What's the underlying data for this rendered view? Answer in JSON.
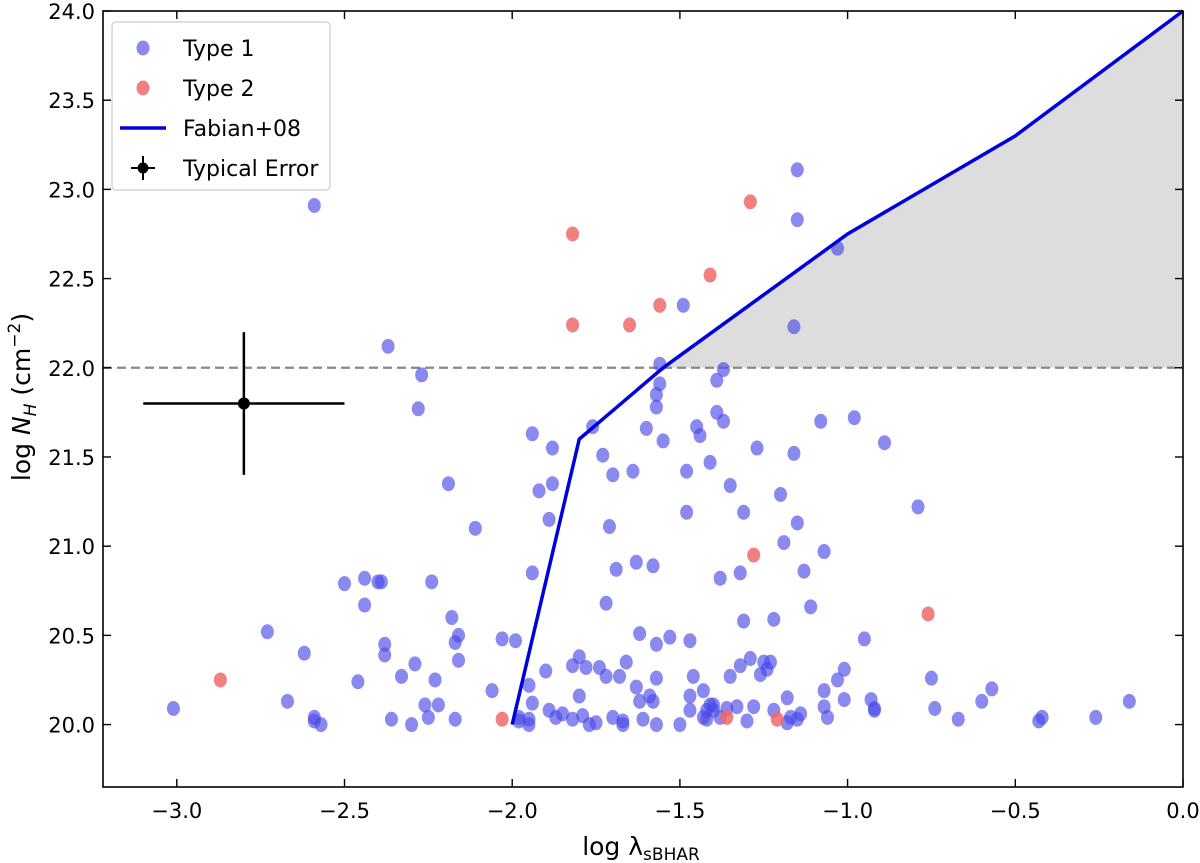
{
  "chart_data": {
    "type": "scatter",
    "xlabel": "log λsBHAR",
    "ylabel": "log NH (cm−2)",
    "xlim": [
      -3.22,
      0.0
    ],
    "ylim": [
      19.65,
      24.0
    ],
    "xticks": [
      "−3.0",
      "−2.5",
      "−2.0",
      "−1.5",
      "−1.0",
      "−0.5",
      "0.0"
    ],
    "xtick_values": [
      -3.0,
      -2.5,
      -2.0,
      -1.5,
      -1.0,
      -0.5,
      0.0
    ],
    "yticks": [
      "20.0",
      "20.5",
      "21.0",
      "21.5",
      "22.0",
      "22.5",
      "23.0",
      "23.5",
      "24.0"
    ],
    "ytick_values": [
      20.0,
      20.5,
      21.0,
      21.5,
      22.0,
      22.5,
      23.0,
      23.5,
      24.0
    ],
    "colors": {
      "type1": "#4a4ae8",
      "type2": "#f06a6a",
      "fabian_line": "#0000dd",
      "shade": "#dddddd",
      "hline": "#888888",
      "error": "#000000"
    },
    "legend": {
      "position": "top-left",
      "entries": [
        "Type 1",
        "Type 2",
        "Fabian+08",
        "Typical Error"
      ]
    },
    "hline": 22.0,
    "typical_error": {
      "x": -2.8,
      "y": 21.8,
      "xerr": 0.3,
      "yerr": 0.4
    },
    "fabian08": {
      "x": [
        -2.0,
        -1.8,
        -1.55,
        -1.0,
        -0.5,
        0.0
      ],
      "y": [
        20.0,
        21.6,
        22.0,
        22.75,
        23.3,
        24.0
      ]
    },
    "series": [
      {
        "name": "Type 1",
        "points": [
          [
            -3.01,
            20.09
          ],
          [
            -2.73,
            20.52
          ],
          [
            -2.67,
            20.13
          ],
          [
            -2.62,
            20.4
          ],
          [
            -2.59,
            20.04
          ],
          [
            -2.59,
            20.02
          ],
          [
            -2.57,
            20.0
          ],
          [
            -2.59,
            22.91
          ],
          [
            -2.5,
            20.79
          ],
          [
            -2.46,
            20.24
          ],
          [
            -2.44,
            20.82
          ],
          [
            -2.44,
            20.67
          ],
          [
            -2.4,
            20.8
          ],
          [
            -2.39,
            20.8
          ],
          [
            -2.38,
            20.45
          ],
          [
            -2.38,
            20.39
          ],
          [
            -2.36,
            20.03
          ],
          [
            -2.37,
            22.12
          ],
          [
            -2.33,
            20.27
          ],
          [
            -2.3,
            20.0
          ],
          [
            -2.29,
            20.34
          ],
          [
            -2.28,
            21.77
          ],
          [
            -2.27,
            21.96
          ],
          [
            -2.26,
            20.11
          ],
          [
            -2.25,
            20.04
          ],
          [
            -2.24,
            20.8
          ],
          [
            -2.23,
            20.25
          ],
          [
            -2.22,
            20.11
          ],
          [
            -2.19,
            21.35
          ],
          [
            -2.18,
            20.6
          ],
          [
            -2.17,
            20.46
          ],
          [
            -2.17,
            20.03
          ],
          [
            -2.16,
            20.36
          ],
          [
            -2.16,
            20.5
          ],
          [
            -2.11,
            21.1
          ],
          [
            -2.06,
            20.19
          ],
          [
            -2.03,
            20.48
          ],
          [
            -1.99,
            20.47
          ],
          [
            -1.98,
            20.04
          ],
          [
            -1.98,
            20.02
          ],
          [
            -1.95,
            20.22
          ],
          [
            -1.95,
            20.03
          ],
          [
            -1.95,
            20.0
          ],
          [
            -1.94,
            20.85
          ],
          [
            -1.94,
            21.63
          ],
          [
            -1.94,
            20.12
          ],
          [
            -1.92,
            21.31
          ],
          [
            -1.9,
            20.3
          ],
          [
            -1.89,
            21.15
          ],
          [
            -1.89,
            20.08
          ],
          [
            -1.88,
            21.35
          ],
          [
            -1.88,
            21.55
          ],
          [
            -1.87,
            20.04
          ],
          [
            -1.85,
            20.06
          ],
          [
            -1.82,
            20.03
          ],
          [
            -1.82,
            20.33
          ],
          [
            -1.8,
            20.38
          ],
          [
            -1.8,
            20.16
          ],
          [
            -1.79,
            20.05
          ],
          [
            -1.78,
            20.32
          ],
          [
            -1.77,
            20.0
          ],
          [
            -1.76,
            21.67
          ],
          [
            -1.75,
            20.01
          ],
          [
            -1.74,
            20.32
          ],
          [
            -1.73,
            21.51
          ],
          [
            -1.72,
            20.27
          ],
          [
            -1.72,
            20.68
          ],
          [
            -1.71,
            21.11
          ],
          [
            -1.7,
            20.04
          ],
          [
            -1.7,
            21.4
          ],
          [
            -1.69,
            20.87
          ],
          [
            -1.68,
            20.27
          ],
          [
            -1.67,
            20.0
          ],
          [
            -1.67,
            20.02
          ],
          [
            -1.66,
            20.35
          ],
          [
            -1.64,
            21.42
          ],
          [
            -1.63,
            20.91
          ],
          [
            -1.63,
            20.21
          ],
          [
            -1.62,
            20.51
          ],
          [
            -1.62,
            20.13
          ],
          [
            -1.61,
            20.03
          ],
          [
            -1.6,
            21.66
          ],
          [
            -1.59,
            20.16
          ],
          [
            -1.58,
            20.13
          ],
          [
            -1.57,
            20.0
          ],
          [
            -1.57,
            21.78
          ],
          [
            -1.57,
            21.85
          ],
          [
            -1.56,
            21.91
          ],
          [
            -1.56,
            22.02
          ],
          [
            -1.55,
            21.59
          ],
          [
            -1.57,
            20.45
          ],
          [
            -1.58,
            20.89
          ],
          [
            -1.57,
            20.26
          ],
          [
            -1.53,
            20.49
          ],
          [
            -1.5,
            20.0
          ],
          [
            -1.49,
            22.35
          ],
          [
            -1.48,
            21.42
          ],
          [
            -1.48,
            21.19
          ],
          [
            -1.47,
            20.47
          ],
          [
            -1.47,
            20.08
          ],
          [
            -1.47,
            20.16
          ],
          [
            -1.46,
            20.27
          ],
          [
            -1.45,
            21.67
          ],
          [
            -1.44,
            21.62
          ],
          [
            -1.43,
            20.04
          ],
          [
            -1.43,
            20.19
          ],
          [
            -1.42,
            20.03
          ],
          [
            -1.42,
            20.08
          ],
          [
            -1.41,
            21.47
          ],
          [
            -1.41,
            20.11
          ],
          [
            -1.4,
            20.11
          ],
          [
            -1.4,
            20.08
          ],
          [
            -1.39,
            21.75
          ],
          [
            -1.39,
            21.93
          ],
          [
            -1.38,
            20.82
          ],
          [
            -1.37,
            21.7
          ],
          [
            -1.37,
            21.99
          ],
          [
            -1.38,
            20.04
          ],
          [
            -1.36,
            20.09
          ],
          [
            -1.35,
            20.27
          ],
          [
            -1.35,
            21.34
          ],
          [
            -1.33,
            20.1
          ],
          [
            -1.32,
            20.33
          ],
          [
            -1.32,
            20.85
          ],
          [
            -1.31,
            21.19
          ],
          [
            -1.31,
            20.58
          ],
          [
            -1.3,
            20.02
          ],
          [
            -1.29,
            20.37
          ],
          [
            -1.28,
            20.1
          ],
          [
            -1.27,
            21.55
          ],
          [
            -1.26,
            20.28
          ],
          [
            -1.25,
            20.35
          ],
          [
            -1.24,
            20.31
          ],
          [
            -1.23,
            20.35
          ],
          [
            -1.22,
            20.59
          ],
          [
            -1.22,
            20.08
          ],
          [
            -1.2,
            21.29
          ],
          [
            -1.19,
            21.02
          ],
          [
            -1.18,
            20.15
          ],
          [
            -1.18,
            20.01
          ],
          [
            -1.17,
            20.04
          ],
          [
            -1.16,
            21.52
          ],
          [
            -1.15,
            21.13
          ],
          [
            -1.15,
            20.03
          ],
          [
            -1.14,
            20.06
          ],
          [
            -1.16,
            22.23
          ],
          [
            -1.15,
            22.83
          ],
          [
            -1.15,
            23.11
          ],
          [
            -1.13,
            20.86
          ],
          [
            -1.11,
            20.66
          ],
          [
            -1.08,
            21.7
          ],
          [
            -1.07,
            20.97
          ],
          [
            -1.07,
            20.19
          ],
          [
            -1.07,
            20.1
          ],
          [
            -1.06,
            20.04
          ],
          [
            -1.03,
            22.67
          ],
          [
            -1.03,
            20.25
          ],
          [
            -1.01,
            20.31
          ],
          [
            -1.01,
            20.14
          ],
          [
            -0.98,
            21.72
          ],
          [
            -0.95,
            20.48
          ],
          [
            -0.93,
            20.14
          ],
          [
            -0.92,
            20.09
          ],
          [
            -0.92,
            20.08
          ],
          [
            -0.89,
            21.58
          ],
          [
            -0.79,
            21.22
          ],
          [
            -0.75,
            20.26
          ],
          [
            -0.74,
            20.09
          ],
          [
            -0.67,
            20.03
          ],
          [
            -0.6,
            20.13
          ],
          [
            -0.57,
            20.2
          ],
          [
            -0.43,
            20.02
          ],
          [
            -0.42,
            20.04
          ],
          [
            -0.26,
            20.04
          ],
          [
            -0.16,
            20.13
          ]
        ]
      },
      {
        "name": "Type 2",
        "points": [
          [
            -2.87,
            20.25
          ],
          [
            -2.03,
            20.03
          ],
          [
            -1.82,
            22.75
          ],
          [
            -1.82,
            22.24
          ],
          [
            -1.65,
            22.24
          ],
          [
            -1.56,
            22.35
          ],
          [
            -1.41,
            22.52
          ],
          [
            -1.36,
            20.04
          ],
          [
            -1.29,
            22.93
          ],
          [
            -1.28,
            20.95
          ],
          [
            -1.21,
            20.03
          ],
          [
            -0.76,
            20.62
          ]
        ]
      }
    ]
  }
}
